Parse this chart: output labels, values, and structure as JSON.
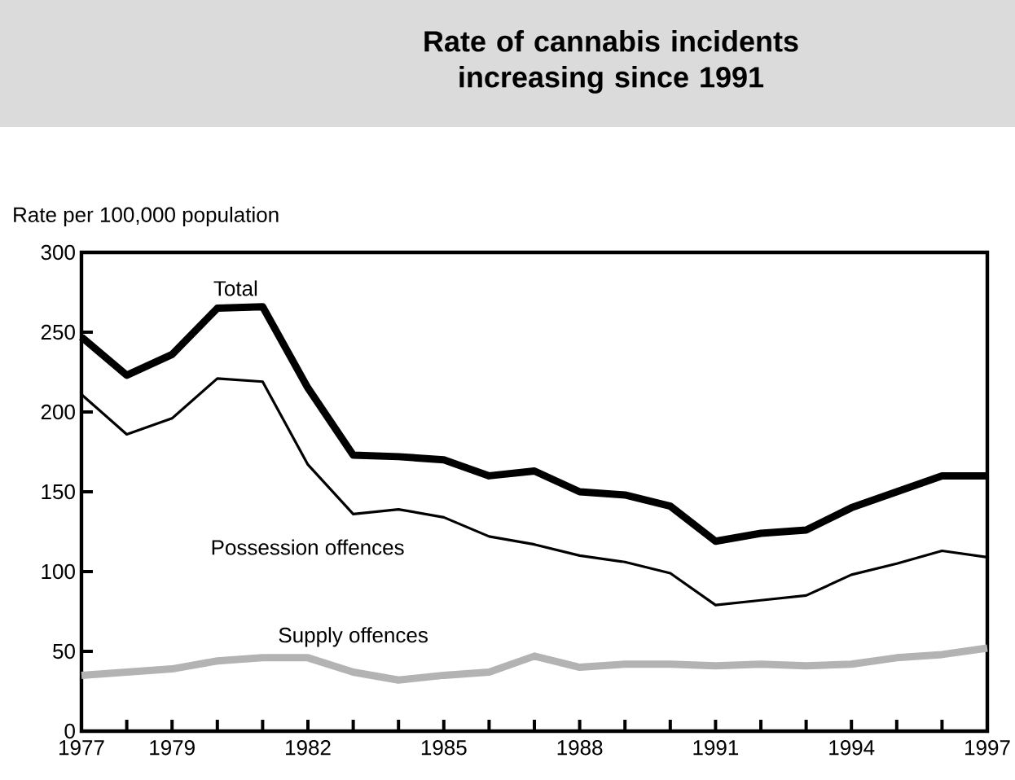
{
  "chart_data": {
    "type": "line",
    "title": "Rate of cannabis incidents increasing since 1991",
    "ylabel": "Rate per 100,000 population",
    "x": [
      1977,
      1978,
      1979,
      1980,
      1981,
      1982,
      1983,
      1984,
      1985,
      1986,
      1987,
      1988,
      1989,
      1990,
      1991,
      1992,
      1993,
      1994,
      1995,
      1996,
      1997
    ],
    "series": [
      {
        "name": "Total",
        "color": "#000000",
        "values": [
          247,
          223,
          236,
          265,
          266,
          215,
          173,
          172,
          170,
          160,
          163,
          150,
          148,
          141,
          119,
          124,
          126,
          140,
          150,
          160,
          160
        ]
      },
      {
        "name": "Possession offences",
        "color": "#000000",
        "values": [
          211,
          186,
          196,
          221,
          219,
          167,
          136,
          139,
          134,
          122,
          117,
          110,
          106,
          99,
          79,
          82,
          85,
          98,
          105,
          113,
          109
        ]
      },
      {
        "name": "Supply offences",
        "color": "#b3b3b3",
        "values": [
          35,
          37,
          39,
          44,
          46,
          46,
          37,
          32,
          35,
          37,
          47,
          40,
          42,
          42,
          41,
          42,
          41,
          42,
          46,
          48,
          52
        ]
      }
    ],
    "xlim": [
      1977,
      1997
    ],
    "xticks": [
      1977,
      {
        "value": 1978,
        "label": null
      },
      1979,
      {
        "value": 1980,
        "label": null
      },
      {
        "value": 1981,
        "label": null
      },
      1982,
      {
        "value": 1983,
        "label": null
      },
      {
        "value": 1984,
        "label": null
      },
      1985,
      {
        "value": 1986,
        "label": null
      },
      {
        "value": 1987,
        "label": null
      },
      1988,
      {
        "value": 1989,
        "label": null
      },
      {
        "value": 1990,
        "label": null
      },
      1991,
      {
        "value": 1992,
        "label": null
      },
      {
        "value": 1993,
        "label": null
      },
      1994,
      {
        "value": 1995,
        "label": null
      },
      {
        "value": 1996,
        "label": null
      },
      1997
    ],
    "ylim": [
      0,
      300
    ],
    "yticks": [
      0,
      50,
      100,
      150,
      200,
      250,
      300
    ],
    "grid": false,
    "legend": false,
    "marker": "none",
    "line_style": "solid"
  }
}
